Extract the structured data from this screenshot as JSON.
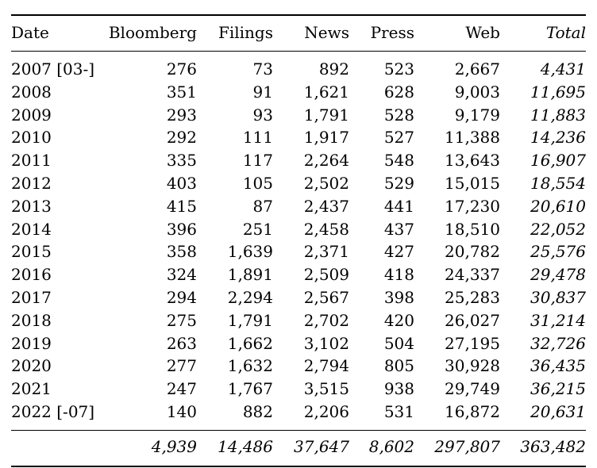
{
  "table": {
    "columns": [
      "Date",
      "Bloomberg",
      "Filings",
      "News",
      "Press",
      "Web",
      "Total"
    ],
    "rows": [
      [
        "2007 [03-]",
        "276",
        "73",
        "892",
        "523",
        "2,667",
        "4,431"
      ],
      [
        "2008",
        "351",
        "91",
        "1,621",
        "628",
        "9,003",
        "11,695"
      ],
      [
        "2009",
        "293",
        "93",
        "1,791",
        "528",
        "9,179",
        "11,883"
      ],
      [
        "2010",
        "292",
        "111",
        "1,917",
        "527",
        "11,388",
        "14,236"
      ],
      [
        "2011",
        "335",
        "117",
        "2,264",
        "548",
        "13,643",
        "16,907"
      ],
      [
        "2012",
        "403",
        "105",
        "2,502",
        "529",
        "15,015",
        "18,554"
      ],
      [
        "2013",
        "415",
        "87",
        "2,437",
        "441",
        "17,230",
        "20,610"
      ],
      [
        "2014",
        "396",
        "251",
        "2,458",
        "437",
        "18,510",
        "22,052"
      ],
      [
        "2015",
        "358",
        "1,639",
        "2,371",
        "427",
        "20,782",
        "25,576"
      ],
      [
        "2016",
        "324",
        "1,891",
        "2,509",
        "418",
        "24,337",
        "29,478"
      ],
      [
        "2017",
        "294",
        "2,294",
        "2,567",
        "398",
        "25,283",
        "30,837"
      ],
      [
        "2018",
        "275",
        "1,791",
        "2,702",
        "420",
        "26,027",
        "31,214"
      ],
      [
        "2019",
        "263",
        "1,662",
        "3,102",
        "504",
        "27,195",
        "32,726"
      ],
      [
        "2020",
        "277",
        "1,632",
        "2,794",
        "805",
        "30,928",
        "36,435"
      ],
      [
        "2021",
        "247",
        "1,767",
        "3,515",
        "938",
        "29,749",
        "36,215"
      ],
      [
        "2022 [-07]",
        "140",
        "882",
        "2,206",
        "531",
        "16,872",
        "20,631"
      ]
    ],
    "totals": [
      "",
      "4,939",
      "14,486",
      "37,647",
      "8,602",
      "297,807",
      "363,482"
    ]
  }
}
